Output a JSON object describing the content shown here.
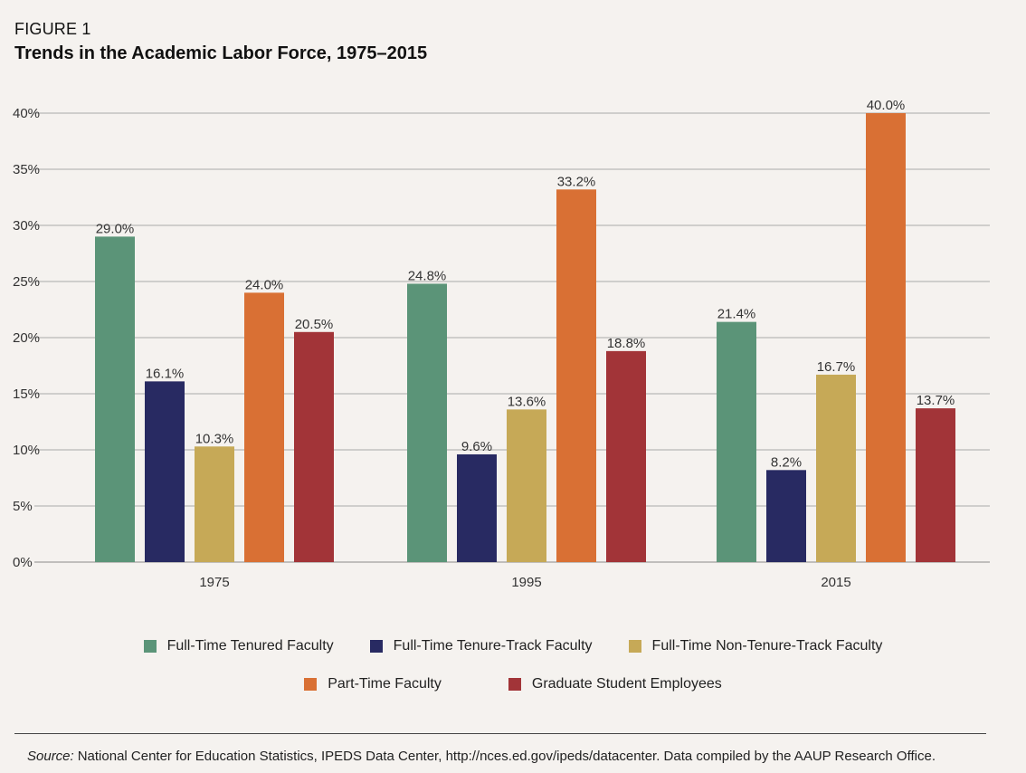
{
  "header": {
    "figure_label": "FIGURE 1",
    "title": "Trends in the Academic Labor Force, 1975–2015"
  },
  "source": {
    "label": "Source:",
    "text": "National Center for Education Statistics, IPEDS Data Center, http://nces.ed.gov/ipeds/datacenter. Data compiled by the AAUP Research Office."
  },
  "legend": {
    "items": [
      "Full-Time Tenured Faculty",
      "Full-Time Tenure-Track Faculty",
      "Full-Time Non-Tenure-Track Faculty",
      "Part-Time Faculty",
      "Graduate Student Employees"
    ]
  },
  "chart_data": {
    "type": "bar",
    "title": "Trends in the Academic Labor Force, 1975–2015",
    "xlabel": "",
    "ylabel": "",
    "categories": [
      "1975",
      "1995",
      "2015"
    ],
    "ylim": [
      0,
      40
    ],
    "yticks": [
      0,
      5,
      10,
      15,
      20,
      25,
      30,
      35,
      40
    ],
    "ytick_labels": [
      "0%",
      "5%",
      "10%",
      "15%",
      "20%",
      "25%",
      "30%",
      "35%",
      "40%"
    ],
    "grid": true,
    "legend_position": "bottom",
    "series": [
      {
        "name": "Full-Time Tenured Faculty",
        "color": "#5b9478",
        "values": [
          29.0,
          24.8,
          21.4
        ],
        "labels": [
          "29.0%",
          "24.8%",
          "21.4%"
        ]
      },
      {
        "name": "Full-Time Tenure-Track Faculty",
        "color": "#282a62",
        "values": [
          16.1,
          9.6,
          8.2
        ],
        "labels": [
          "16.1%",
          "9.6%",
          "8.2%"
        ]
      },
      {
        "name": "Full-Time Non-Tenure-Track Faculty",
        "color": "#c6a957",
        "values": [
          10.3,
          13.6,
          16.7
        ],
        "labels": [
          "10.3%",
          "13.6%",
          "16.7%"
        ]
      },
      {
        "name": "Part-Time Faculty",
        "color": "#d97034",
        "values": [
          24.0,
          33.2,
          40.0
        ],
        "labels": [
          "24.0%",
          "33.2%",
          "40.0%"
        ]
      },
      {
        "name": "Graduate Student Employees",
        "color": "#a23438",
        "values": [
          20.5,
          18.8,
          13.7
        ],
        "labels": [
          "20.5%",
          "18.8%",
          "13.7%"
        ]
      }
    ]
  }
}
